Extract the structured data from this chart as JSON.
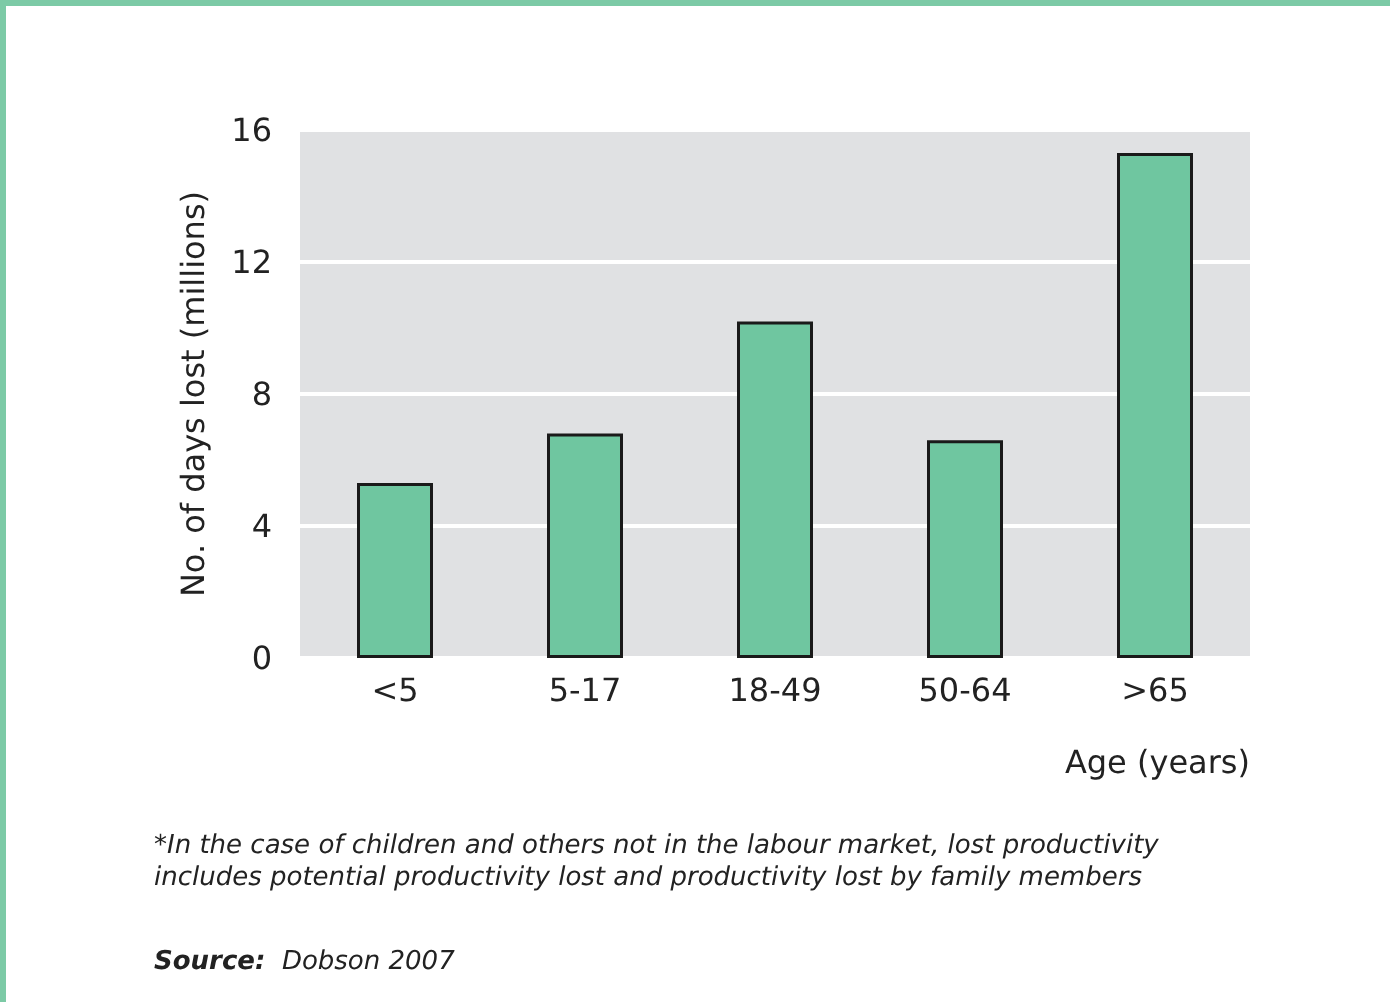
{
  "chart_data": {
    "type": "bar",
    "xlabel": "Age (years)",
    "ylabel": "No. of days lost (millions)",
    "categories": [
      "<5",
      "5-17",
      "18-49",
      "50-64",
      ">65"
    ],
    "values": [
      5.3,
      6.8,
      10.2,
      6.6,
      15.3
    ],
    "color": "#6fc6a0",
    "ylim": [
      0,
      16
    ],
    "yticks": [
      0,
      4,
      8,
      12,
      16
    ],
    "grid": "y",
    "annotations": [
      "*In the case of children and others not in the labour market, lost productivity\nincludes potential productivity lost and productivity lost by family members",
      "Source: Dobson 2007"
    ]
  }
}
